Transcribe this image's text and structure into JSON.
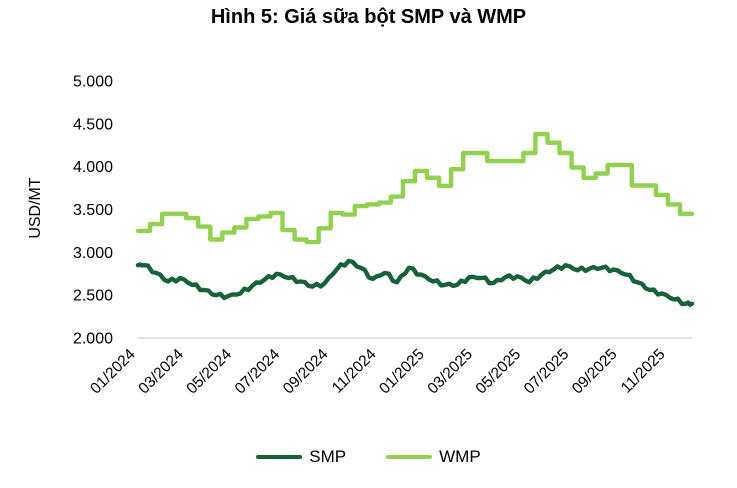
{
  "chart_data": {
    "type": "line",
    "title": "Hình 5: Giá sữa bột SMP và WMP",
    "ylabel": "USD/MT",
    "y_range": [
      2000,
      5000
    ],
    "y_ticks": [
      {
        "label": "5.000",
        "value": 5000
      },
      {
        "label": "4.500",
        "value": 4500
      },
      {
        "label": "4.000",
        "value": 4000
      },
      {
        "label": "3.500",
        "value": 3500
      },
      {
        "label": "3.000",
        "value": 3000
      },
      {
        "label": "2.500",
        "value": 2500
      },
      {
        "label": "2.000",
        "value": 2000
      }
    ],
    "x_tick_labels": [
      "01/2024",
      "03/2024",
      "05/2024",
      "07/2024",
      "09/2024",
      "11/2024",
      "01/2025",
      "03/2025",
      "05/2025",
      "07/2025",
      "09/2025",
      "11/2025"
    ],
    "x_span_months": 23,
    "start_month": "01/2024",
    "end_month": "11/2025",
    "points_per_month": 2,
    "sampling": "semi-monthly estimates read from plot",
    "grid": "off",
    "legend_position": "bottom",
    "unit": "USD/MT",
    "series": [
      {
        "name": "SMP",
        "color": "#17613A",
        "style": "line",
        "values": [
          2850,
          2760,
          2660,
          2700,
          2620,
          2560,
          2500,
          2490,
          2520,
          2610,
          2680,
          2750,
          2700,
          2660,
          2600,
          2640,
          2800,
          2900,
          2820,
          2690,
          2760,
          2650,
          2820,
          2740,
          2660,
          2620,
          2620,
          2710,
          2700,
          2640,
          2710,
          2720,
          2650,
          2740,
          2800,
          2850,
          2790,
          2810,
          2820,
          2800,
          2740,
          2650,
          2560,
          2520,
          2450,
          2400
        ]
      },
      {
        "name": "WMP",
        "color": "#92D050",
        "style": "step",
        "values": [
          3250,
          3330,
          3450,
          3450,
          3400,
          3300,
          3150,
          3230,
          3290,
          3390,
          3420,
          3460,
          3260,
          3150,
          3120,
          3280,
          3460,
          3440,
          3540,
          3560,
          3580,
          3650,
          3830,
          3950,
          3870,
          3775,
          3970,
          4160,
          4160,
          4065,
          4065,
          4065,
          4160,
          4380,
          4280,
          4160,
          3990,
          3870,
          3920,
          4020,
          4020,
          3780,
          3780,
          3670,
          3560,
          3450
        ]
      }
    ]
  }
}
